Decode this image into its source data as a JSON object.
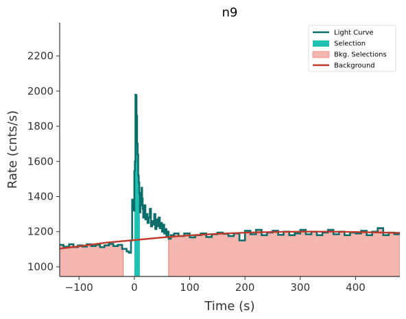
{
  "chart_data": {
    "type": "line",
    "title": "n9",
    "xlabel": "Time (s)",
    "ylabel": "Rate (cnts/s)",
    "xlim": [
      -135,
      480
    ],
    "ylim": [
      945,
      2390
    ],
    "xticks": [
      -100,
      0,
      100,
      200,
      300,
      400
    ],
    "yticks": [
      1000,
      1200,
      1400,
      1600,
      1800,
      2000,
      2200
    ],
    "grid": false,
    "legend_position": "top-right",
    "colors": {
      "light_curve": "#0b6e6a",
      "selection": "#1fc1b3",
      "bkg_fill": "#f4b6ae",
      "bkg_edge": "#e8877b",
      "background": "#c0392b"
    },
    "legend": [
      {
        "label": "Light Curve",
        "kind": "line",
        "color": "#0b6e6a"
      },
      {
        "label": "Selection",
        "kind": "patch",
        "color": "#1fc1b3"
      },
      {
        "label": "Bkg. Selections",
        "kind": "patch",
        "color": "#f4b6ae"
      },
      {
        "label": "Background",
        "kind": "line",
        "color": "#c0392b"
      }
    ],
    "selection": {
      "name": "Selection",
      "x_range": [
        0,
        10
      ]
    },
    "bkg_selections": {
      "name": "Bkg. Selections",
      "ranges": [
        [
          -135,
          -20
        ],
        [
          62,
          480
        ]
      ]
    },
    "background": {
      "name": "Background",
      "x": [
        -135,
        -100,
        -50,
        0,
        50,
        100,
        150,
        200,
        250,
        300,
        350,
        400,
        450,
        480
      ],
      "y": [
        1103,
        1117,
        1138,
        1152,
        1167,
        1179,
        1188,
        1194,
        1198,
        1200,
        1200,
        1198,
        1195,
        1193
      ]
    },
    "series": [
      {
        "name": "Light Curve",
        "drawstyle": "steps-post",
        "x": [
          -135,
          -128,
          -118,
          -110,
          -102,
          -94,
          -86,
          -78,
          -70,
          -62,
          -54,
          -46,
          -38,
          -30,
          -22,
          -14,
          -10,
          -6,
          -4,
          -2,
          0,
          1,
          2,
          3,
          4,
          5,
          6,
          7,
          8,
          9,
          10,
          11,
          12,
          13,
          14,
          15,
          16,
          18,
          20,
          22,
          24,
          26,
          28,
          30,
          32,
          34,
          36,
          38,
          40,
          42,
          44,
          46,
          48,
          50,
          52,
          54,
          56,
          58,
          60,
          62,
          66,
          72,
          80,
          90,
          100,
          110,
          120,
          130,
          140,
          150,
          160,
          170,
          180,
          190,
          200,
          210,
          220,
          230,
          240,
          250,
          260,
          270,
          280,
          290,
          300,
          310,
          320,
          330,
          340,
          350,
          360,
          370,
          380,
          390,
          400,
          410,
          420,
          430,
          440,
          450,
          460,
          470,
          480
        ],
        "y": [
          1125,
          1115,
          1128,
          1112,
          1122,
          1115,
          1128,
          1118,
          1125,
          1112,
          1122,
          1130,
          1118,
          1125,
          1102,
          1088,
          1080,
          1150,
          1382,
          1320,
          1545,
          1600,
          1980,
          1975,
          1860,
          1700,
          1640,
          1520,
          1480,
          1420,
          1310,
          1380,
          1350,
          1450,
          1390,
          1330,
          1280,
          1350,
          1270,
          1300,
          1250,
          1280,
          1330,
          1230,
          1260,
          1240,
          1300,
          1215,
          1270,
          1230,
          1280,
          1220,
          1250,
          1200,
          1240,
          1190,
          1215,
          1175,
          1200,
          1160,
          1180,
          1190,
          1175,
          1190,
          1168,
          1180,
          1190,
          1170,
          1185,
          1195,
          1188,
          1175,
          1190,
          1150,
          1205,
          1185,
          1210,
          1180,
          1195,
          1205,
          1182,
          1200,
          1180,
          1190,
          1210,
          1185,
          1200,
          1180,
          1195,
          1210,
          1185,
          1200,
          1180,
          1195,
          1190,
          1205,
          1180,
          1200,
          1220,
          1180,
          1195,
          1185,
          1190
        ]
      }
    ]
  }
}
